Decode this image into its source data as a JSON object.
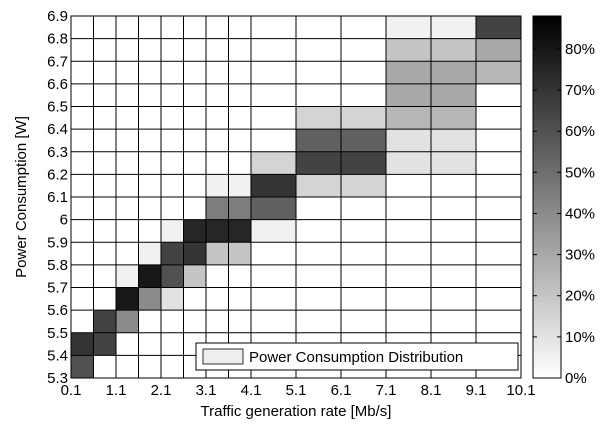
{
  "chart_data": {
    "type": "heatmap",
    "title": "",
    "xlabel": "Traffic generation rate [Mb/s]",
    "ylabel": "Power Consumption [W]",
    "x_tick_labels": [
      "0.1",
      "1.1",
      "2.1",
      "3.1",
      "4.1",
      "5.1",
      "6.1",
      "7.1",
      "8.1",
      "9.1",
      "10.1"
    ],
    "y_tick_labels": [
      "5.3",
      "5.4",
      "5.5",
      "5.6",
      "5.7",
      "5.8",
      "5.9",
      "6",
      "6.1",
      "6.2",
      "6.3",
      "6.4",
      "6.5",
      "6.6",
      "6.7",
      "6.8",
      "6.9"
    ],
    "xlim": [
      0.1,
      10.1
    ],
    "ylim": [
      5.3,
      6.9
    ],
    "x_bin_edges": [
      0.1,
      0.6,
      1.1,
      1.6,
      2.1,
      2.6,
      3.1,
      3.6,
      4.1,
      5.1,
      6.1,
      7.1,
      8.1,
      9.1,
      10.1
    ],
    "y_bin_edges": [
      5.3,
      5.4,
      5.5,
      5.6,
      5.7,
      5.8,
      5.9,
      6.0,
      6.1,
      6.2,
      6.3,
      6.4,
      6.5,
      6.6,
      6.7,
      6.8,
      6.9
    ],
    "cells": [
      {
        "x": [
          0.1,
          0.6
        ],
        "y": [
          5.3,
          5.4
        ],
        "value": 60
      },
      {
        "x": [
          0.1,
          0.6
        ],
        "y": [
          5.4,
          5.5
        ],
        "value": 70
      },
      {
        "x": [
          0.6,
          1.1
        ],
        "y": [
          5.4,
          5.5
        ],
        "value": 65
      },
      {
        "x": [
          0.6,
          1.1
        ],
        "y": [
          5.5,
          5.6
        ],
        "value": 65
      },
      {
        "x": [
          1.1,
          1.6
        ],
        "y": [
          5.5,
          5.6
        ],
        "value": 40
      },
      {
        "x": [
          1.1,
          1.6
        ],
        "y": [
          5.6,
          5.7
        ],
        "value": 80
      },
      {
        "x": [
          1.6,
          2.1
        ],
        "y": [
          5.6,
          5.7
        ],
        "value": 40
      },
      {
        "x": [
          1.1,
          1.6
        ],
        "y": [
          5.7,
          5.8
        ],
        "value": 5
      },
      {
        "x": [
          1.6,
          2.1
        ],
        "y": [
          5.7,
          5.8
        ],
        "value": 80
      },
      {
        "x": [
          2.1,
          2.6
        ],
        "y": [
          5.6,
          5.7
        ],
        "value": 10
      },
      {
        "x": [
          2.1,
          2.6
        ],
        "y": [
          5.7,
          5.8
        ],
        "value": 60
      },
      {
        "x": [
          2.1,
          2.6
        ],
        "y": [
          5.8,
          5.9
        ],
        "value": 65
      },
      {
        "x": [
          1.6,
          2.1
        ],
        "y": [
          5.8,
          5.9
        ],
        "value": 5
      },
      {
        "x": [
          2.6,
          3.1
        ],
        "y": [
          5.7,
          5.8
        ],
        "value": 20
      },
      {
        "x": [
          2.6,
          3.1
        ],
        "y": [
          5.8,
          5.9
        ],
        "value": 70
      },
      {
        "x": [
          2.6,
          3.1
        ],
        "y": [
          5.9,
          6.0
        ],
        "value": 75
      },
      {
        "x": [
          2.1,
          2.6
        ],
        "y": [
          5.9,
          6.0
        ],
        "value": 5
      },
      {
        "x": [
          3.1,
          4.1
        ],
        "y": [
          5.8,
          5.9
        ],
        "value": 20
      },
      {
        "x": [
          3.1,
          4.1
        ],
        "y": [
          5.9,
          6.0
        ],
        "value": 75
      },
      {
        "x": [
          3.1,
          4.1
        ],
        "y": [
          6.0,
          6.1
        ],
        "value": 45
      },
      {
        "x": [
          3.1,
          4.1
        ],
        "y": [
          6.1,
          6.2
        ],
        "value": 5
      },
      {
        "x": [
          4.1,
          5.1
        ],
        "y": [
          5.9,
          6.0
        ],
        "value": 5
      },
      {
        "x": [
          4.1,
          5.1
        ],
        "y": [
          6.0,
          6.1
        ],
        "value": 55
      },
      {
        "x": [
          4.1,
          5.1
        ],
        "y": [
          6.1,
          6.2
        ],
        "value": 70
      },
      {
        "x": [
          4.1,
          5.1
        ],
        "y": [
          6.2,
          6.3
        ],
        "value": 15
      },
      {
        "x": [
          5.1,
          7.1
        ],
        "y": [
          6.1,
          6.2
        ],
        "value": 15
      },
      {
        "x": [
          5.1,
          7.1
        ],
        "y": [
          6.2,
          6.3
        ],
        "value": 65
      },
      {
        "x": [
          5.1,
          7.1
        ],
        "y": [
          6.3,
          6.4
        ],
        "value": 55
      },
      {
        "x": [
          5.1,
          7.1
        ],
        "y": [
          6.4,
          6.5
        ],
        "value": 15
      },
      {
        "x": [
          7.1,
          9.1
        ],
        "y": [
          6.2,
          6.3
        ],
        "value": 10
      },
      {
        "x": [
          7.1,
          9.1
        ],
        "y": [
          6.3,
          6.4
        ],
        "value": 10
      },
      {
        "x": [
          7.1,
          9.1
        ],
        "y": [
          6.4,
          6.5
        ],
        "value": 25
      },
      {
        "x": [
          7.1,
          9.1
        ],
        "y": [
          6.5,
          6.6
        ],
        "value": 30
      },
      {
        "x": [
          7.1,
          9.1
        ],
        "y": [
          6.6,
          6.7
        ],
        "value": 30
      },
      {
        "x": [
          7.1,
          9.1
        ],
        "y": [
          6.7,
          6.8
        ],
        "value": 20
      },
      {
        "x": [
          7.1,
          9.1
        ],
        "y": [
          6.8,
          6.9
        ],
        "value": 5
      },
      {
        "x": [
          9.1,
          10.1
        ],
        "y": [
          6.6,
          6.7
        ],
        "value": 25
      },
      {
        "x": [
          9.1,
          10.1
        ],
        "y": [
          6.7,
          6.8
        ],
        "value": 30
      },
      {
        "x": [
          9.1,
          10.1
        ],
        "y": [
          6.8,
          6.9
        ],
        "value": 65
      }
    ],
    "colorbar": {
      "range": [
        0,
        88
      ],
      "tick_labels": [
        "0%",
        "10%",
        "20%",
        "30%",
        "40%",
        "50%",
        "60%",
        "70%",
        "80%"
      ],
      "tick_values": [
        0,
        10,
        20,
        30,
        40,
        50,
        60,
        70,
        80
      ],
      "colormap": "gray-reversed",
      "low_color": "#ffffff",
      "high_color": "#000000"
    },
    "legend": {
      "position": "bottom-right",
      "label": "Power Consumption Distribution",
      "swatch_color": "#eeeeee"
    },
    "grid": true
  }
}
